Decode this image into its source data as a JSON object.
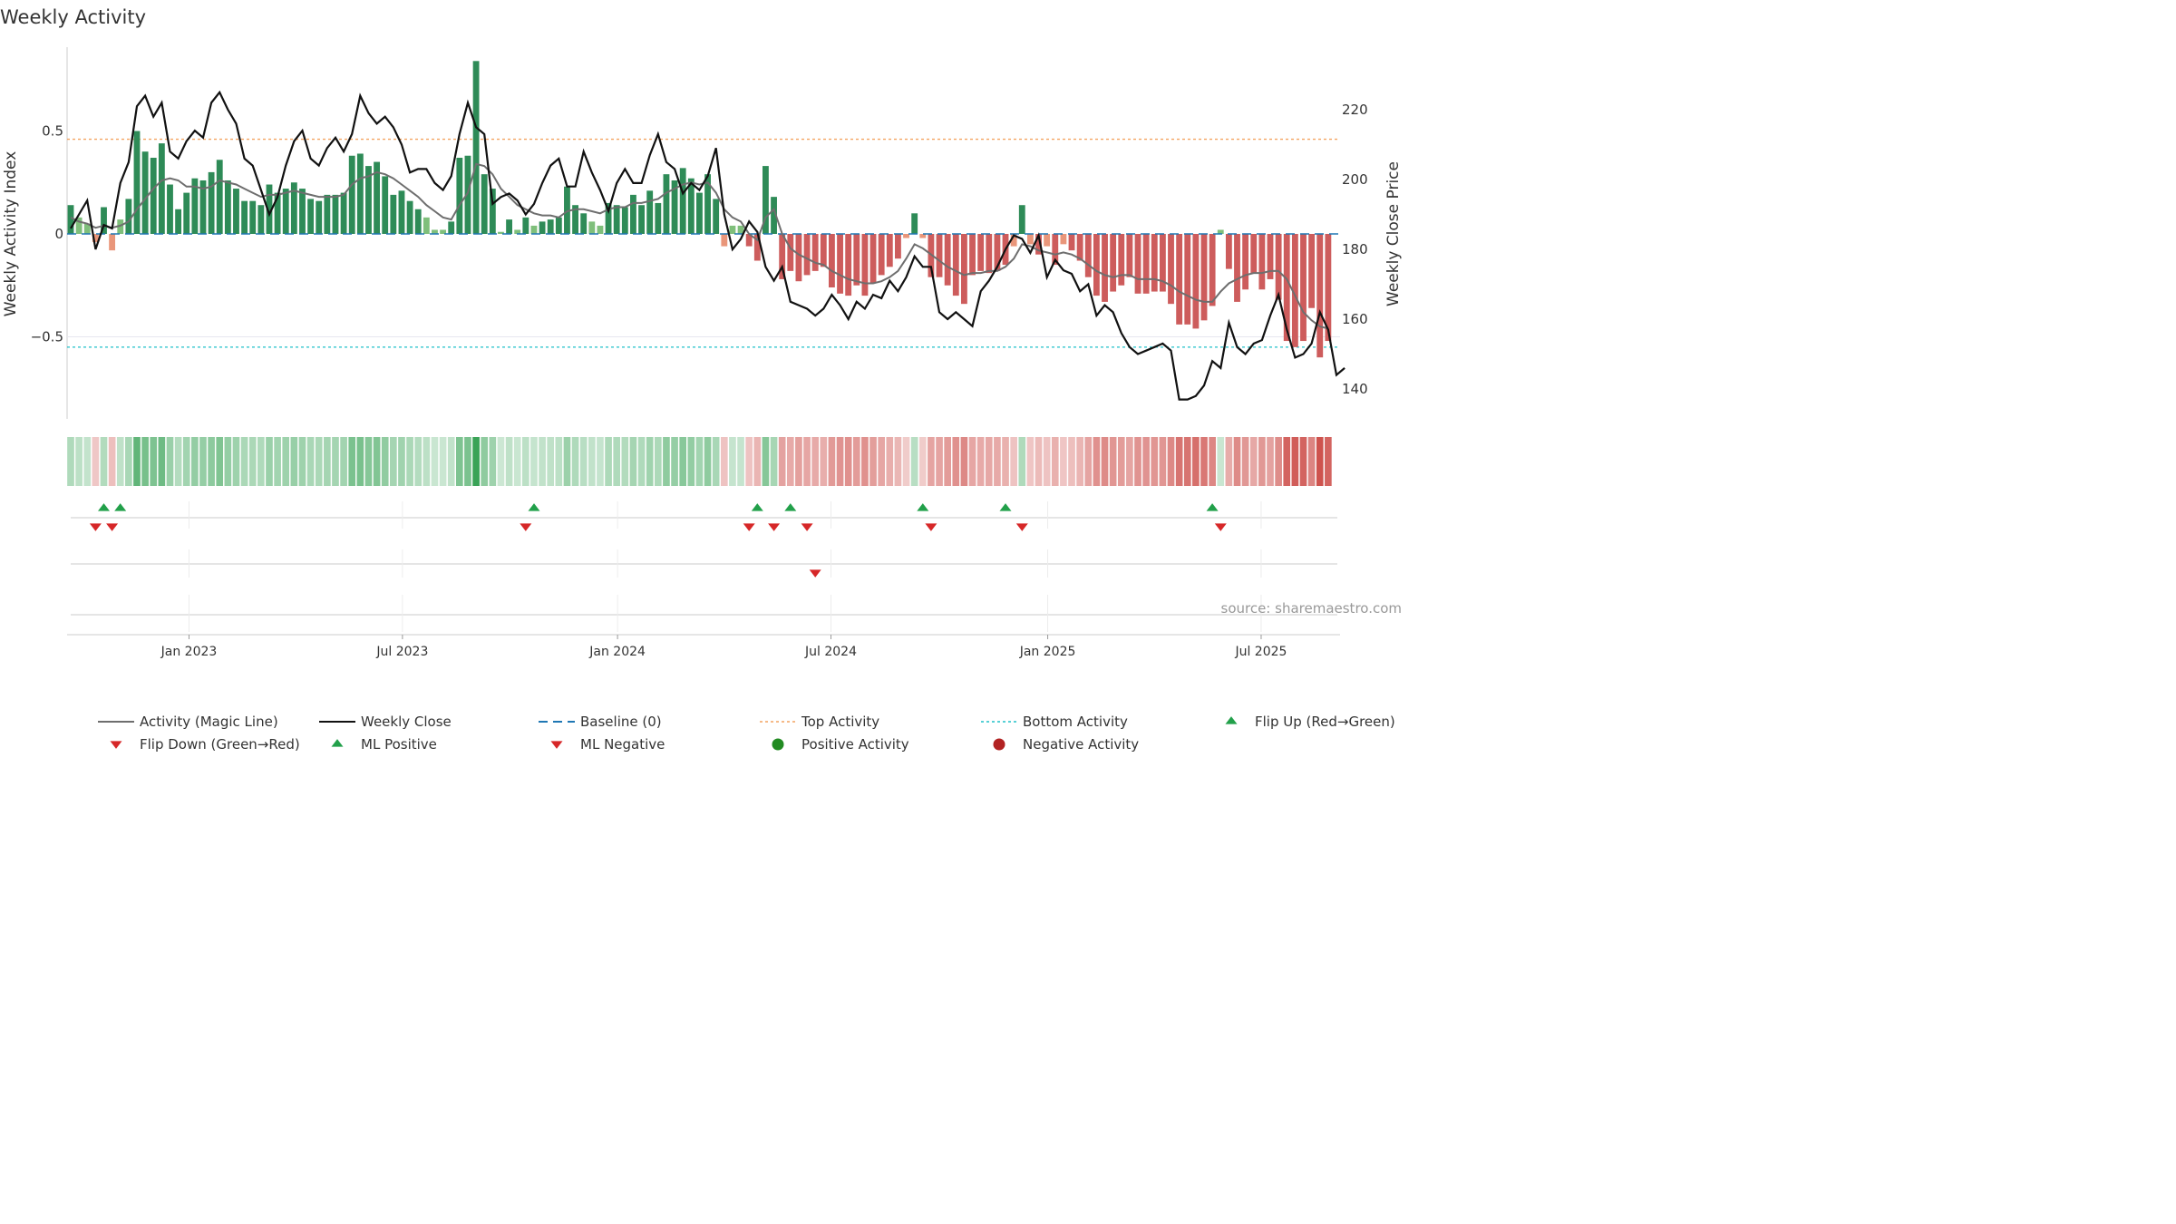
{
  "chart_data": {
    "type": "bar",
    "title": "Weekly Activity",
    "ylabel_left": "Weekly Activity Index",
    "ylabel_right": "Weekly Close Price",
    "source": "source: sharemaestro.com",
    "ylim_left": [
      -0.9,
      0.9
    ],
    "ylim_right": [
      130,
      240
    ],
    "yticks_left": [
      {
        "value": 0.5,
        "label": "0.5"
      },
      {
        "value": 0.0,
        "label": "0"
      },
      {
        "value": -0.5,
        "label": "−0.5"
      }
    ],
    "yticks_right": [
      {
        "value": 220,
        "label": "220"
      },
      {
        "value": 200,
        "label": "200"
      },
      {
        "value": 180,
        "label": "180"
      },
      {
        "value": 160,
        "label": "160"
      },
      {
        "value": 140,
        "label": "140"
      }
    ],
    "x_range_weeks": [
      0,
      153
    ],
    "xticks": [
      {
        "week": 14.3,
        "label": "Jan 2023"
      },
      {
        "week": 40.1,
        "label": "Jul 2023"
      },
      {
        "week": 66.1,
        "label": "Jan 2024"
      },
      {
        "week": 91.9,
        "label": "Jul 2024"
      },
      {
        "week": 118.1,
        "label": "Jan 2025"
      },
      {
        "week": 143.9,
        "label": "Jul 2025"
      }
    ],
    "top_activity": 0.46,
    "bottom_activity": -0.55,
    "activity": [
      0.14,
      0.08,
      0.05,
      -0.04,
      0.13,
      -0.08,
      0.07,
      0.17,
      0.5,
      0.4,
      0.37,
      0.44,
      0.24,
      0.12,
      0.2,
      0.27,
      0.26,
      0.3,
      0.36,
      0.26,
      0.22,
      0.16,
      0.16,
      0.14,
      0.24,
      0.2,
      0.22,
      0.25,
      0.22,
      0.17,
      0.16,
      0.19,
      0.19,
      0.2,
      0.38,
      0.39,
      0.33,
      0.35,
      0.28,
      0.19,
      0.21,
      0.16,
      0.12,
      0.08,
      0.02,
      0.02,
      0.06,
      0.37,
      0.38,
      0.84,
      0.29,
      0.22,
      0.01,
      0.07,
      0.02,
      0.08,
      0.04,
      0.06,
      0.07,
      0.08,
      0.23,
      0.14,
      0.1,
      0.06,
      0.04,
      0.15,
      0.14,
      0.13,
      0.19,
      0.14,
      0.21,
      0.15,
      0.29,
      0.26,
      0.32,
      0.27,
      0.2,
      0.29,
      0.17,
      -0.06,
      0.04,
      0.04,
      -0.06,
      -0.13,
      0.33,
      0.18,
      -0.22,
      -0.18,
      -0.23,
      -0.2,
      -0.18,
      -0.16,
      -0.26,
      -0.29,
      -0.3,
      -0.25,
      -0.3,
      -0.24,
      -0.2,
      -0.16,
      -0.12,
      -0.02,
      0.1,
      -0.02,
      -0.21,
      -0.21,
      -0.25,
      -0.3,
      -0.34,
      -0.2,
      -0.18,
      -0.19,
      -0.18,
      -0.15,
      -0.06,
      0.14,
      -0.05,
      -0.1,
      -0.06,
      -0.15,
      -0.05,
      -0.08,
      -0.13,
      -0.21,
      -0.3,
      -0.33,
      -0.28,
      -0.25,
      -0.21,
      -0.29,
      -0.29,
      -0.28,
      -0.28,
      -0.34,
      -0.44,
      -0.44,
      -0.46,
      -0.42,
      -0.35,
      0.02,
      -0.17,
      -0.33,
      -0.27,
      -0.19,
      -0.27,
      -0.22,
      -0.32,
      -0.52,
      -0.55,
      -0.52,
      -0.36,
      -0.6,
      -0.52
    ],
    "magic_line": [
      0.08,
      0.06,
      0.05,
      0.03,
      0.04,
      0.03,
      0.04,
      0.06,
      0.12,
      0.17,
      0.22,
      0.26,
      0.27,
      0.26,
      0.23,
      0.23,
      0.22,
      0.23,
      0.26,
      0.25,
      0.24,
      0.22,
      0.2,
      0.18,
      0.19,
      0.19,
      0.2,
      0.21,
      0.2,
      0.19,
      0.18,
      0.18,
      0.18,
      0.19,
      0.24,
      0.27,
      0.28,
      0.3,
      0.29,
      0.27,
      0.24,
      0.21,
      0.18,
      0.14,
      0.11,
      0.08,
      0.07,
      0.14,
      0.2,
      0.34,
      0.33,
      0.29,
      0.22,
      0.18,
      0.14,
      0.12,
      0.1,
      0.09,
      0.09,
      0.08,
      0.11,
      0.12,
      0.12,
      0.11,
      0.1,
      0.12,
      0.13,
      0.13,
      0.15,
      0.15,
      0.16,
      0.17,
      0.2,
      0.22,
      0.24,
      0.25,
      0.24,
      0.25,
      0.2,
      0.12,
      0.08,
      0.06,
      0.0,
      -0.03,
      0.08,
      0.12,
      0.0,
      -0.07,
      -0.1,
      -0.12,
      -0.14,
      -0.15,
      -0.18,
      -0.2,
      -0.22,
      -0.23,
      -0.24,
      -0.24,
      -0.23,
      -0.21,
      -0.18,
      -0.12,
      -0.05,
      -0.07,
      -0.1,
      -0.13,
      -0.16,
      -0.18,
      -0.2,
      -0.19,
      -0.19,
      -0.18,
      -0.18,
      -0.16,
      -0.12,
      -0.05,
      -0.06,
      -0.08,
      -0.09,
      -0.1,
      -0.09,
      -0.1,
      -0.12,
      -0.15,
      -0.18,
      -0.2,
      -0.21,
      -0.2,
      -0.2,
      -0.22,
      -0.22,
      -0.22,
      -0.23,
      -0.25,
      -0.28,
      -0.3,
      -0.32,
      -0.33,
      -0.33,
      -0.28,
      -0.24,
      -0.22,
      -0.2,
      -0.19,
      -0.19,
      -0.18,
      -0.18,
      -0.22,
      -0.3,
      -0.38,
      -0.42,
      -0.45,
      -0.46
    ],
    "close": [
      186,
      190,
      194,
      180,
      187,
      186,
      199,
      205,
      221,
      224,
      218,
      222,
      208,
      206,
      211,
      214,
      212,
      222,
      225,
      220,
      216,
      206,
      204,
      197,
      190,
      195,
      204,
      211,
      214,
      206,
      204,
      209,
      212,
      208,
      213,
      224,
      219,
      216,
      218,
      215,
      210,
      202,
      203,
      203,
      199,
      197,
      201,
      213,
      222,
      215,
      213,
      193,
      195,
      196,
      194,
      190,
      193,
      199,
      204,
      206,
      198,
      198,
      208,
      202,
      197,
      191,
      199,
      203,
      199,
      199,
      207,
      213,
      205,
      203,
      196,
      199,
      197,
      201,
      209,
      190,
      180,
      183,
      188,
      185,
      175,
      171,
      175,
      165,
      164,
      163,
      161,
      163,
      167,
      164,
      160,
      165,
      163,
      167,
      166,
      171,
      168,
      172,
      178,
      175,
      175,
      162,
      160,
      162,
      160,
      158,
      168,
      171,
      175,
      180,
      184,
      183,
      179,
      184,
      172,
      177,
      174,
      173,
      168,
      170,
      161,
      164,
      162,
      156,
      152,
      150,
      151,
      152,
      153,
      151,
      137,
      137,
      138,
      141,
      148,
      146,
      159,
      152,
      150,
      153,
      154,
      161,
      167,
      157,
      149,
      150,
      153,
      162,
      157,
      144,
      146
    ],
    "flips_up_weeks": [
      4,
      6,
      56,
      83,
      87,
      103,
      113,
      138
    ],
    "flips_down_weeks": [
      3,
      5,
      55,
      82,
      85,
      89,
      104,
      115,
      139
    ],
    "ml_negative_weeks": [
      90
    ],
    "legend": [
      {
        "key": "magic",
        "label": "Activity (Magic Line)"
      },
      {
        "key": "close",
        "label": "Weekly Close"
      },
      {
        "key": "baseline",
        "label": "Baseline (0)"
      },
      {
        "key": "top",
        "label": "Top Activity"
      },
      {
        "key": "bottom",
        "label": "Bottom Activity"
      },
      {
        "key": "flipup",
        "label": "Flip Up (Red→Green)"
      },
      {
        "key": "flipdown",
        "label": "Flip Down (Green→Red)"
      },
      {
        "key": "mlpos",
        "label": "ML Positive"
      },
      {
        "key": "mlneg",
        "label": "ML Negative"
      },
      {
        "key": "posact",
        "label": "Positive Activity"
      },
      {
        "key": "negact",
        "label": "Negative Activity"
      }
    ],
    "colors": {
      "green_strong": "#2e8b57",
      "green_light": "#7fbf7b",
      "red_strong": "#cd5c5c",
      "red_light": "#e9967a",
      "magic": "#6e6e6e",
      "close": "#111111",
      "baseline": "#1f77b4",
      "top": "#f4a460",
      "bottom": "#20c0c8",
      "flip_up": "#22a04a",
      "flip_down": "#d62728",
      "pos_dot": "#228b22",
      "neg_dot": "#b22222"
    }
  }
}
